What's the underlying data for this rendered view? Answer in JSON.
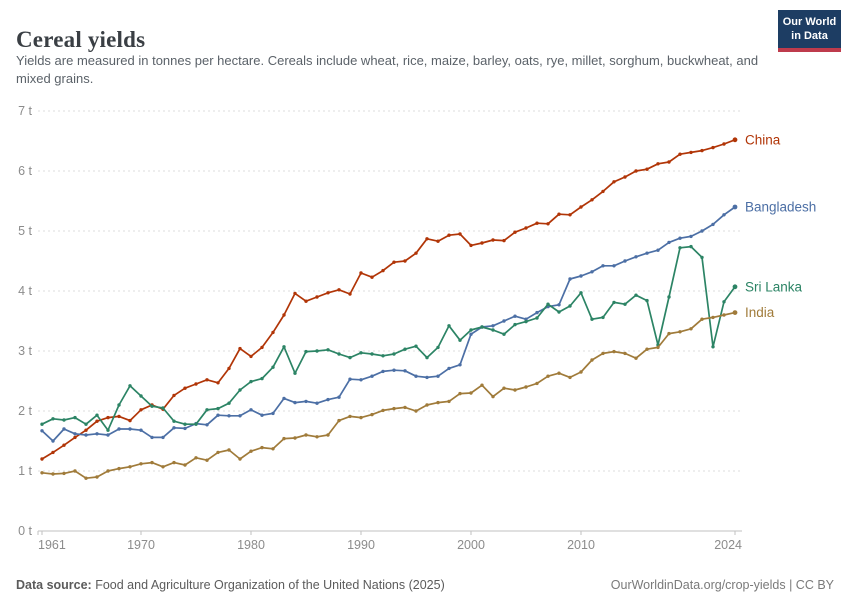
{
  "header": {
    "title": "Cereal yields",
    "subtitle": "Yields are measured in tonnes per hectare. Cereals include wheat, rice, maize, barley, oats, rye, millet, sorghum, buckwheat, and mixed grains."
  },
  "logo": {
    "line1": "Our World",
    "line2": "in Data",
    "bg_color": "#1D3D63",
    "accent_color": "#BE3B4C"
  },
  "footer": {
    "source_label": "Data source:",
    "source_text": "Food and Agriculture Organization of the United Nations (2025)",
    "attribution": "OurWorldinData.org/crop-yields | CC BY"
  },
  "chart_data": {
    "type": "line",
    "title": "Cereal yields",
    "ylabel": "tonnes per hectare",
    "y_unit": "t",
    "ylim": [
      0,
      7
    ],
    "grid": true,
    "legend_position": "end-of-line labels",
    "xticks": [
      1961,
      1970,
      1980,
      1990,
      2000,
      2010,
      2024
    ],
    "yticks": [
      {
        "value": 0,
        "label": "0 t"
      },
      {
        "value": 1,
        "label": "1 t"
      },
      {
        "value": 2,
        "label": "2 t"
      },
      {
        "value": 3,
        "label": "3 t"
      },
      {
        "value": 4,
        "label": "4 t"
      },
      {
        "value": 5,
        "label": "5 t"
      },
      {
        "value": 6,
        "label": "6 t"
      },
      {
        "value": 7,
        "label": "7 t"
      }
    ],
    "years": [
      1961,
      1962,
      1963,
      1964,
      1965,
      1966,
      1967,
      1968,
      1969,
      1970,
      1971,
      1972,
      1973,
      1974,
      1975,
      1976,
      1977,
      1978,
      1979,
      1980,
      1981,
      1982,
      1983,
      1984,
      1985,
      1986,
      1987,
      1988,
      1989,
      1990,
      1991,
      1992,
      1993,
      1994,
      1995,
      1996,
      1997,
      1998,
      1999,
      2000,
      2001,
      2002,
      2003,
      2004,
      2005,
      2006,
      2007,
      2008,
      2009,
      2010,
      2011,
      2012,
      2013,
      2014,
      2015,
      2016,
      2017,
      2018,
      2019,
      2020,
      2021,
      2022,
      2023,
      2024
    ],
    "series": [
      {
        "name": "China",
        "color": "#B13507",
        "values": [
          1.2,
          1.31,
          1.43,
          1.56,
          1.68,
          1.83,
          1.89,
          1.91,
          1.84,
          2.02,
          2.1,
          2.03,
          2.26,
          2.38,
          2.45,
          2.52,
          2.47,
          2.71,
          3.04,
          2.91,
          3.06,
          3.31,
          3.6,
          3.96,
          3.83,
          3.9,
          3.97,
          4.02,
          3.95,
          4.3,
          4.23,
          4.34,
          4.48,
          4.5,
          4.63,
          4.87,
          4.83,
          4.93,
          4.95,
          4.76,
          4.8,
          4.85,
          4.84,
          4.98,
          5.05,
          5.13,
          5.12,
          5.28,
          5.27,
          5.4,
          5.52,
          5.66,
          5.82,
          5.9,
          6.0,
          6.03,
          6.12,
          6.15,
          6.28,
          6.31,
          6.34,
          6.39,
          6.45,
          6.52
        ]
      },
      {
        "name": "Bangladesh",
        "color": "#4C6FA5",
        "values": [
          1.67,
          1.5,
          1.7,
          1.62,
          1.6,
          1.62,
          1.6,
          1.7,
          1.7,
          1.68,
          1.56,
          1.56,
          1.72,
          1.71,
          1.79,
          1.77,
          1.93,
          1.92,
          1.92,
          2.02,
          1.93,
          1.96,
          2.21,
          2.14,
          2.16,
          2.13,
          2.19,
          2.23,
          2.53,
          2.52,
          2.58,
          2.66,
          2.68,
          2.67,
          2.58,
          2.56,
          2.58,
          2.71,
          2.77,
          3.28,
          3.4,
          3.42,
          3.5,
          3.58,
          3.53,
          3.64,
          3.74,
          3.77,
          4.2,
          4.25,
          4.32,
          4.42,
          4.42,
          4.5,
          4.57,
          4.63,
          4.68,
          4.81,
          4.88,
          4.91,
          5.0,
          5.11,
          5.27,
          5.4
        ]
      },
      {
        "name": "Sri Lanka",
        "color": "#2C8465",
        "values": [
          1.78,
          1.87,
          1.85,
          1.89,
          1.78,
          1.93,
          1.68,
          2.1,
          2.42,
          2.25,
          2.08,
          2.05,
          1.83,
          1.78,
          1.78,
          2.02,
          2.04,
          2.13,
          2.35,
          2.49,
          2.54,
          2.73,
          3.07,
          2.63,
          2.99,
          3.0,
          3.02,
          2.95,
          2.89,
          2.97,
          2.95,
          2.92,
          2.95,
          3.03,
          3.08,
          2.89,
          3.06,
          3.42,
          3.18,
          3.35,
          3.4,
          3.35,
          3.28,
          3.44,
          3.49,
          3.55,
          3.78,
          3.65,
          3.75,
          3.97,
          3.53,
          3.56,
          3.81,
          3.78,
          3.93,
          3.84,
          3.1,
          3.9,
          4.72,
          4.74,
          4.56,
          3.07,
          3.82,
          4.07
        ]
      },
      {
        "name": "India",
        "color": "#A07B3A",
        "values": [
          0.97,
          0.95,
          0.96,
          1.0,
          0.88,
          0.9,
          1.0,
          1.04,
          1.07,
          1.12,
          1.14,
          1.07,
          1.14,
          1.1,
          1.22,
          1.18,
          1.31,
          1.35,
          1.2,
          1.33,
          1.39,
          1.37,
          1.54,
          1.55,
          1.6,
          1.57,
          1.6,
          1.84,
          1.91,
          1.89,
          1.94,
          2.01,
          2.04,
          2.06,
          2.0,
          2.1,
          2.14,
          2.16,
          2.29,
          2.3,
          2.43,
          2.24,
          2.38,
          2.35,
          2.4,
          2.46,
          2.58,
          2.63,
          2.56,
          2.65,
          2.85,
          2.96,
          2.99,
          2.96,
          2.88,
          3.03,
          3.06,
          3.29,
          3.32,
          3.37,
          3.53,
          3.56,
          3.6,
          3.64
        ]
      }
    ]
  }
}
